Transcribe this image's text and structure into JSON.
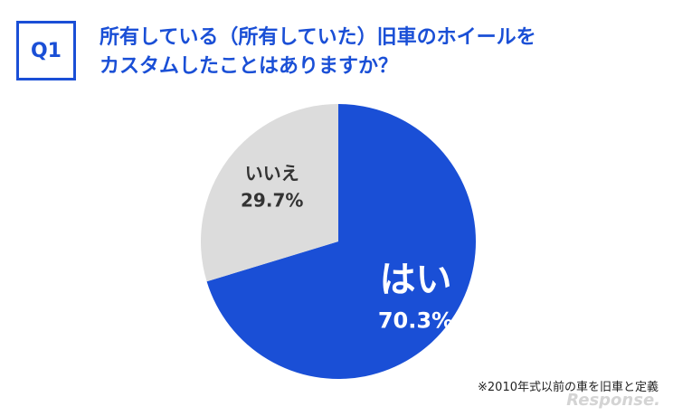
{
  "header": {
    "badge": "Q1",
    "question_line1": "所有している（所有していた）旧車のホイールを",
    "question_line2": "カスタムしたことはありますか？"
  },
  "chart_data": {
    "type": "pie",
    "slices": [
      {
        "label": "はい",
        "value": 70.3,
        "value_text": "70.3%",
        "color": "#1a4fd6"
      },
      {
        "label": "いいえ",
        "value": 29.7,
        "value_text": "29.7%",
        "color": "#dcdcdc"
      }
    ]
  },
  "footnote": "※2010年式以前の車を旧車と定義",
  "watermark": "Response."
}
